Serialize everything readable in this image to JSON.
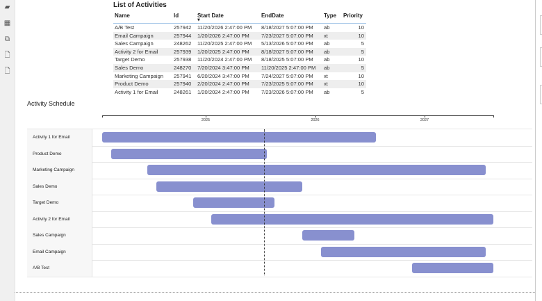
{
  "sidebar": {
    "icons": [
      "report-icon",
      "table-icon",
      "model-icon",
      "dax-query-icon",
      "tmdl-icon"
    ]
  },
  "table": {
    "title": "List of Activities",
    "headers": [
      "Name",
      "Id",
      "Start Date",
      "EndDate",
      "Type",
      "Priority"
    ],
    "sort_column": "Start Date",
    "sort_direction": "descending",
    "rows": [
      [
        "A/B Test",
        "257942",
        "11/20/2026 2:47:00 PM",
        "8/18/2027 5:07:00 PM",
        "ab",
        "10"
      ],
      [
        "Email Campaign",
        "257944",
        "1/20/2026 2:47:00 PM",
        "7/23/2027 5:07:00 PM",
        "xt",
        "10"
      ],
      [
        "Sales Campaign",
        "248262",
        "11/20/2025 2:47:00 PM",
        "5/13/2026 5:07:00 PM",
        "ab",
        "5"
      ],
      [
        "Activity 2 for Email",
        "257939",
        "1/20/2025 2:47:00 PM",
        "8/18/2027 5:07:00 PM",
        "ab",
        "5"
      ],
      [
        "Target Demo",
        "257938",
        "11/20/2024 2:47:00 PM",
        "8/18/2025 5:07:00 PM",
        "ab",
        "10"
      ],
      [
        "Sales Demo",
        "248270",
        "7/20/2024 3:47:00 PM",
        "11/20/2025 2:47:00 PM",
        "ab",
        "5"
      ],
      [
        "Marketing Campaign",
        "257941",
        "6/20/2024 3:47:00 PM",
        "7/24/2027 5:07:00 PM",
        "xt",
        "10"
      ],
      [
        "Product Demo",
        "257940",
        "2/20/2024 2:47:00 PM",
        "7/23/2025 5:07:00 PM",
        "xt",
        "10"
      ],
      [
        "Activity 1 for Email",
        "248261",
        "1/20/2024 2:47:00 PM",
        "7/23/2026 5:07:00 PM",
        "ab",
        "5"
      ]
    ]
  },
  "gantt": {
    "title": "Activity Schedule",
    "bar_color": "#8890cf",
    "ticks": [
      "2025",
      "2026",
      "2027"
    ],
    "today": "2025-07-15",
    "tasks": [
      {
        "name": "Activity 1 for Email",
        "start": "2024-01-20",
        "end": "2026-07-23"
      },
      {
        "name": "Product Demo",
        "start": "2024-02-20",
        "end": "2025-07-23"
      },
      {
        "name": "Marketing Campaign",
        "start": "2024-06-20",
        "end": "2027-07-24"
      },
      {
        "name": "Sales Demo",
        "start": "2024-07-20",
        "end": "2025-11-20"
      },
      {
        "name": "Target Demo",
        "start": "2024-11-20",
        "end": "2025-08-18"
      },
      {
        "name": "Activity 2 for Email",
        "start": "2025-01-20",
        "end": "2027-08-18"
      },
      {
        "name": "Sales Campaign",
        "start": "2025-11-20",
        "end": "2026-05-13"
      },
      {
        "name": "Email Campaign",
        "start": "2026-01-20",
        "end": "2027-07-23"
      },
      {
        "name": "A/B Test",
        "start": "2026-11-20",
        "end": "2027-08-18"
      }
    ]
  }
}
